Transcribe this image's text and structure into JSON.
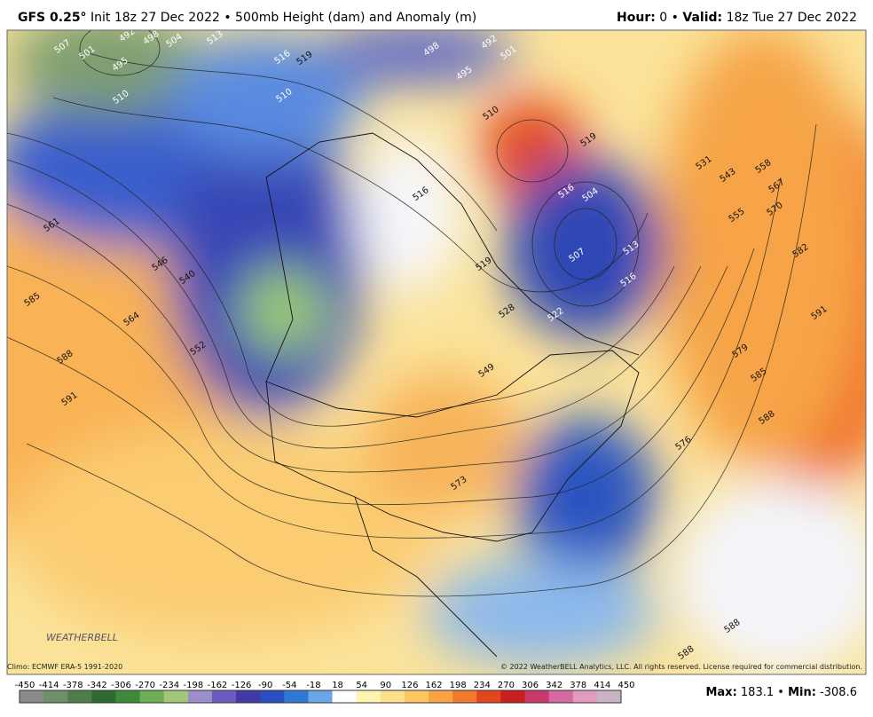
{
  "header": {
    "model": "GFS 0.25°",
    "description": "Init 18z 27 Dec 2022 • 500mb Height (dam) and Anomaly (m)",
    "hour_label": "Hour:",
    "hour": "0",
    "separator": "•",
    "valid_label": "Valid:",
    "valid": "18z Tue 27 Dec 2022"
  },
  "map": {
    "contour_labels": [
      "507",
      "501",
      "492",
      "498",
      "504",
      "495",
      "510",
      "513",
      "516",
      "519",
      "510",
      "498",
      "492",
      "501",
      "495",
      "510",
      "519",
      "516",
      "504",
      "507",
      "513",
      "516",
      "522",
      "528",
      "516",
      "519",
      "549",
      "573",
      "576",
      "579",
      "585",
      "588",
      "591",
      "582",
      "570",
      "567",
      "558",
      "555",
      "543",
      "531",
      "561",
      "546",
      "540",
      "564",
      "552",
      "585",
      "588",
      "591",
      "588",
      "588"
    ],
    "logo": "WEATHERBELL"
  },
  "footer": {
    "climo": "Climo: ECMWF ERA-5 1991-2020",
    "copyright": "© 2022 WeatherBELL Analytics, LLC. All rights reserved. License required for commercial distribution."
  },
  "colorbar": {
    "ticks": [
      -450,
      -414,
      -378,
      -342,
      -306,
      -270,
      -234,
      -198,
      -162,
      -126,
      -90,
      -54,
      -18,
      18,
      54,
      90,
      126,
      162,
      198,
      234,
      270,
      306,
      342,
      378,
      414,
      450
    ],
    "colors": [
      "#8a8a8a",
      "#6f8f6a",
      "#4f7d4a",
      "#2f6a35",
      "#3d8a3a",
      "#6fae55",
      "#a3c77a",
      "#9a8fc8",
      "#6c5cc0",
      "#3f3aa8",
      "#2a4fc0",
      "#2f78d6",
      "#6aa6e6",
      "#ffffff",
      "#fff4b0",
      "#ffe08a",
      "#ffc760",
      "#f9a545",
      "#f17a2e",
      "#e2461e",
      "#c8201e",
      "#c8386a",
      "#d56aa0",
      "#e39ac0",
      "#c9b4c4"
    ]
  },
  "stats": {
    "max_label": "Max:",
    "max": 183.1,
    "separator": "•",
    "min_label": "Min:",
    "min": -308.6
  }
}
